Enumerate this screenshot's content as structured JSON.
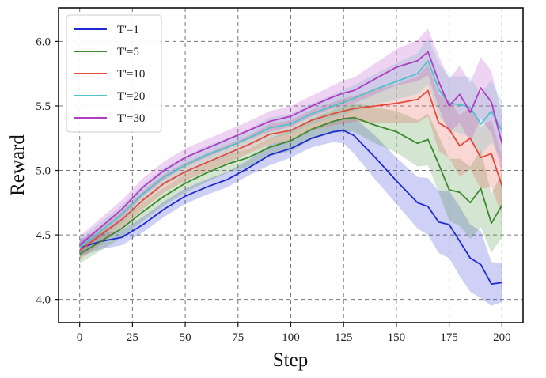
{
  "chart_data": {
    "type": "line",
    "xlabel": "Step",
    "ylabel": "Reward",
    "xlim": [
      -10,
      210
    ],
    "ylim": [
      3.82,
      6.26
    ],
    "xticks": [
      0,
      25,
      50,
      75,
      100,
      125,
      150,
      175,
      200
    ],
    "yticks": [
      4.0,
      4.5,
      5.0,
      5.5,
      6.0
    ],
    "ytick_labels": [
      "4.0",
      "4.5",
      "5.0",
      "5.5",
      "6.0"
    ],
    "grid": true,
    "grid_style": "dashed",
    "legend_position": "top-left",
    "series_note": "Each series is a mean line with a shaded band (lower/upper) around it.",
    "series": [
      {
        "name": "T'=1",
        "color": "#1f2bd1",
        "x": [
          0,
          10,
          20,
          30,
          40,
          50,
          60,
          70,
          80,
          90,
          100,
          110,
          120,
          125,
          130,
          140,
          150,
          160,
          165,
          170,
          175,
          180,
          185,
          190,
          195,
          200
        ],
        "y": [
          4.4,
          4.45,
          4.48,
          4.58,
          4.7,
          4.8,
          4.87,
          4.93,
          5.02,
          5.12,
          5.17,
          5.25,
          5.3,
          5.31,
          5.27,
          5.1,
          4.92,
          4.75,
          4.72,
          4.6,
          4.58,
          4.45,
          4.32,
          4.27,
          4.12,
          4.13
        ],
        "lower": [
          4.33,
          4.39,
          4.42,
          4.52,
          4.64,
          4.74,
          4.81,
          4.87,
          4.96,
          5.04,
          5.1,
          5.18,
          5.22,
          5.21,
          5.13,
          4.93,
          4.74,
          4.55,
          4.5,
          4.36,
          4.32,
          4.18,
          4.06,
          4.01,
          3.95,
          3.98
        ],
        "upper": [
          4.47,
          4.51,
          4.54,
          4.64,
          4.76,
          4.86,
          4.93,
          4.99,
          5.08,
          5.2,
          5.24,
          5.32,
          5.38,
          5.41,
          5.41,
          5.27,
          5.1,
          4.95,
          4.94,
          4.84,
          4.84,
          4.72,
          4.58,
          4.53,
          4.29,
          4.28
        ]
      },
      {
        "name": "T'=5",
        "color": "#3c8a2e",
        "x": [
          0,
          10,
          20,
          30,
          40,
          50,
          60,
          70,
          80,
          90,
          100,
          110,
          120,
          125,
          130,
          140,
          150,
          160,
          165,
          170,
          175,
          180,
          185,
          190,
          195,
          200
        ],
        "y": [
          4.35,
          4.45,
          4.55,
          4.68,
          4.8,
          4.9,
          4.98,
          5.05,
          5.1,
          5.18,
          5.23,
          5.32,
          5.38,
          5.4,
          5.41,
          5.35,
          5.3,
          5.21,
          5.24,
          5.05,
          4.85,
          4.83,
          4.75,
          4.86,
          4.59,
          4.73
        ],
        "lower": [
          4.28,
          4.38,
          4.48,
          4.61,
          4.73,
          4.83,
          4.91,
          4.98,
          5.03,
          5.11,
          5.15,
          5.24,
          5.29,
          5.3,
          5.3,
          5.21,
          5.14,
          5.03,
          5.04,
          4.83,
          4.61,
          4.57,
          4.47,
          4.56,
          4.36,
          4.48
        ],
        "upper": [
          4.42,
          4.52,
          4.62,
          4.75,
          4.87,
          4.97,
          5.05,
          5.12,
          5.17,
          5.25,
          5.31,
          5.4,
          5.47,
          5.5,
          5.52,
          5.49,
          5.46,
          5.39,
          5.44,
          5.27,
          5.09,
          5.09,
          5.03,
          5.16,
          4.82,
          4.98
        ]
      },
      {
        "name": "T'=10",
        "color": "#e2493b",
        "x": [
          0,
          10,
          20,
          30,
          40,
          50,
          60,
          70,
          80,
          90,
          100,
          110,
          120,
          125,
          130,
          140,
          150,
          160,
          165,
          170,
          175,
          180,
          185,
          190,
          195,
          200
        ],
        "y": [
          4.38,
          4.5,
          4.62,
          4.77,
          4.9,
          4.99,
          5.06,
          5.13,
          5.2,
          5.28,
          5.31,
          5.39,
          5.44,
          5.46,
          5.48,
          5.5,
          5.52,
          5.55,
          5.62,
          5.37,
          5.32,
          5.19,
          5.25,
          5.1,
          5.13,
          4.88
        ],
        "lower": [
          4.31,
          4.43,
          4.55,
          4.7,
          4.83,
          4.92,
          4.99,
          5.06,
          5.13,
          5.2,
          5.23,
          5.31,
          5.35,
          5.36,
          5.38,
          5.37,
          5.37,
          5.37,
          5.42,
          5.15,
          5.1,
          4.95,
          5.01,
          4.86,
          4.87,
          4.65
        ],
        "upper": [
          4.45,
          4.57,
          4.69,
          4.84,
          4.97,
          5.06,
          5.13,
          5.2,
          5.27,
          5.36,
          5.39,
          5.47,
          5.53,
          5.56,
          5.58,
          5.63,
          5.67,
          5.73,
          5.82,
          5.59,
          5.54,
          5.43,
          5.49,
          5.34,
          5.39,
          5.11
        ]
      },
      {
        "name": "T'=20",
        "color": "#4fc3c6",
        "x": [
          0,
          10,
          20,
          30,
          40,
          50,
          60,
          70,
          80,
          90,
          100,
          110,
          120,
          125,
          130,
          140,
          150,
          160,
          165,
          170,
          175,
          180,
          185,
          190,
          195,
          200
        ],
        "y": [
          4.4,
          4.53,
          4.66,
          4.82,
          4.95,
          5.04,
          5.12,
          5.18,
          5.25,
          5.33,
          5.36,
          5.44,
          5.5,
          5.53,
          5.56,
          5.63,
          5.69,
          5.75,
          5.85,
          5.63,
          5.52,
          5.51,
          5.49,
          5.36,
          5.46,
          5.31
        ],
        "lower": [
          4.33,
          4.46,
          4.59,
          4.75,
          4.88,
          4.97,
          5.05,
          5.11,
          5.18,
          5.25,
          5.28,
          5.36,
          5.41,
          5.43,
          5.46,
          5.51,
          5.55,
          5.59,
          5.67,
          5.43,
          5.31,
          5.29,
          5.26,
          5.12,
          5.22,
          5.08
        ],
        "upper": [
          4.47,
          4.6,
          4.73,
          4.89,
          5.02,
          5.11,
          5.19,
          5.25,
          5.32,
          5.41,
          5.44,
          5.52,
          5.59,
          5.63,
          5.66,
          5.75,
          5.83,
          5.91,
          6.03,
          5.83,
          5.73,
          5.73,
          5.72,
          5.6,
          5.7,
          5.54
        ]
      },
      {
        "name": "T'=30",
        "color": "#b13bc2",
        "x": [
          0,
          10,
          20,
          30,
          40,
          50,
          60,
          70,
          80,
          90,
          100,
          110,
          120,
          125,
          130,
          140,
          150,
          160,
          165,
          170,
          175,
          180,
          185,
          190,
          195,
          200
        ],
        "y": [
          4.42,
          4.56,
          4.7,
          4.87,
          5.0,
          5.1,
          5.17,
          5.24,
          5.31,
          5.38,
          5.42,
          5.5,
          5.57,
          5.6,
          5.62,
          5.71,
          5.8,
          5.85,
          5.92,
          5.69,
          5.5,
          5.59,
          5.45,
          5.64,
          5.53,
          5.21
        ],
        "lower": [
          4.35,
          4.49,
          4.63,
          4.8,
          4.93,
          5.03,
          5.1,
          5.17,
          5.24,
          5.3,
          5.34,
          5.42,
          5.48,
          5.5,
          5.52,
          5.59,
          5.66,
          5.69,
          5.74,
          5.49,
          5.29,
          5.37,
          5.22,
          5.4,
          5.29,
          4.98
        ],
        "upper": [
          4.49,
          4.63,
          4.77,
          4.94,
          5.07,
          5.17,
          5.24,
          5.31,
          5.38,
          5.46,
          5.5,
          5.58,
          5.66,
          5.7,
          5.72,
          5.83,
          5.94,
          6.01,
          6.1,
          5.89,
          5.71,
          5.81,
          5.68,
          5.88,
          5.77,
          5.44
        ]
      }
    ]
  }
}
